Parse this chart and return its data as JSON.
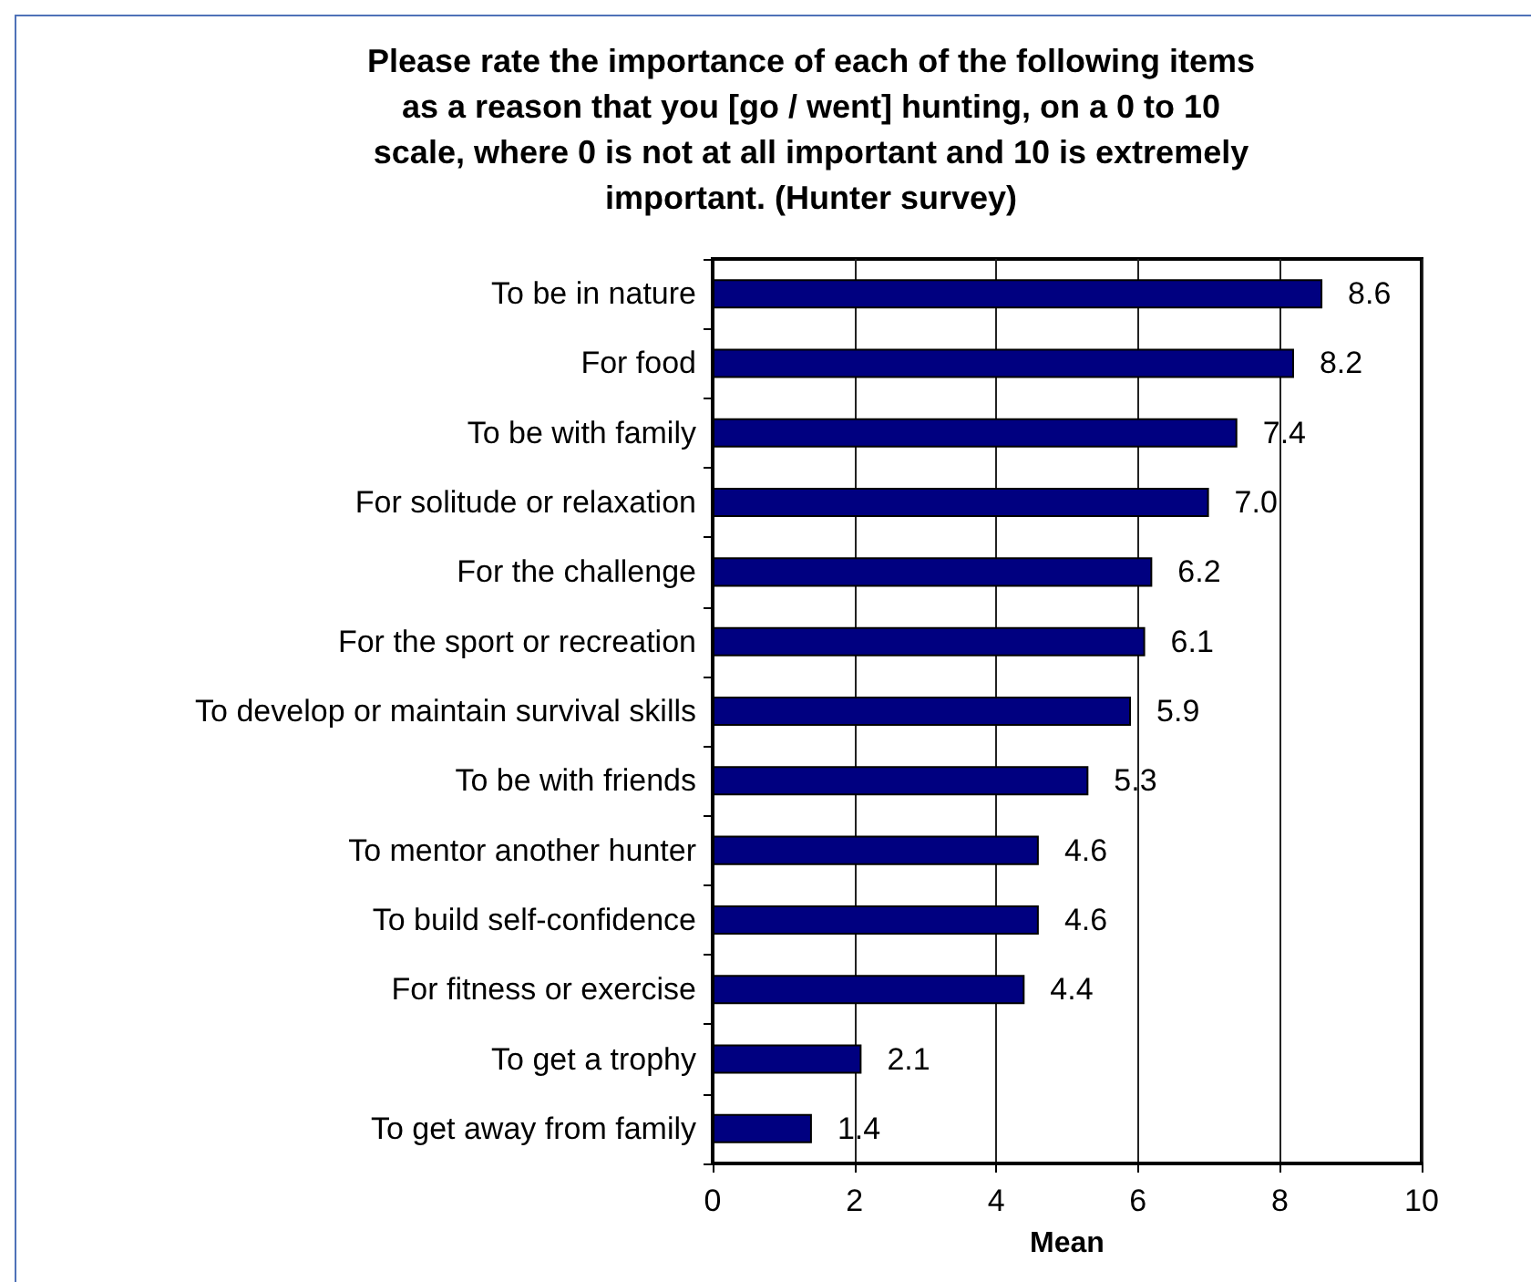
{
  "chart_data": {
    "type": "bar",
    "orientation": "horizontal",
    "title": "Please rate the importance of each of the following items\nas a reason that you [go / went] hunting, on a 0 to 10\nscale, where 0 is not at all important and 10 is extremely\nimportant. (Hunter survey)",
    "xlabel": "Mean",
    "categories": [
      "To be in nature",
      "For food",
      "To be with family",
      "For solitude or relaxation",
      "For the challenge",
      "For the sport or recreation",
      "To develop or maintain survival skills",
      "To be with friends",
      "To mentor another hunter",
      "To build self-confidence",
      "For fitness or exercise",
      "To get a trophy",
      "To get away from family"
    ],
    "values": [
      8.6,
      8.2,
      7.4,
      7.0,
      6.2,
      6.1,
      5.9,
      5.3,
      4.6,
      4.6,
      4.4,
      2.1,
      1.4
    ],
    "value_labels": [
      "8.6",
      "8.2",
      "7.4",
      "7.0",
      "6.2",
      "6.1",
      "5.9",
      "5.3",
      "4.6",
      "4.6",
      "4.4",
      "2.1",
      "1.4"
    ],
    "color": "#000080",
    "xlim": [
      0,
      10
    ],
    "xticks": [
      0,
      2,
      4,
      6,
      8,
      10
    ],
    "grid": "x"
  }
}
